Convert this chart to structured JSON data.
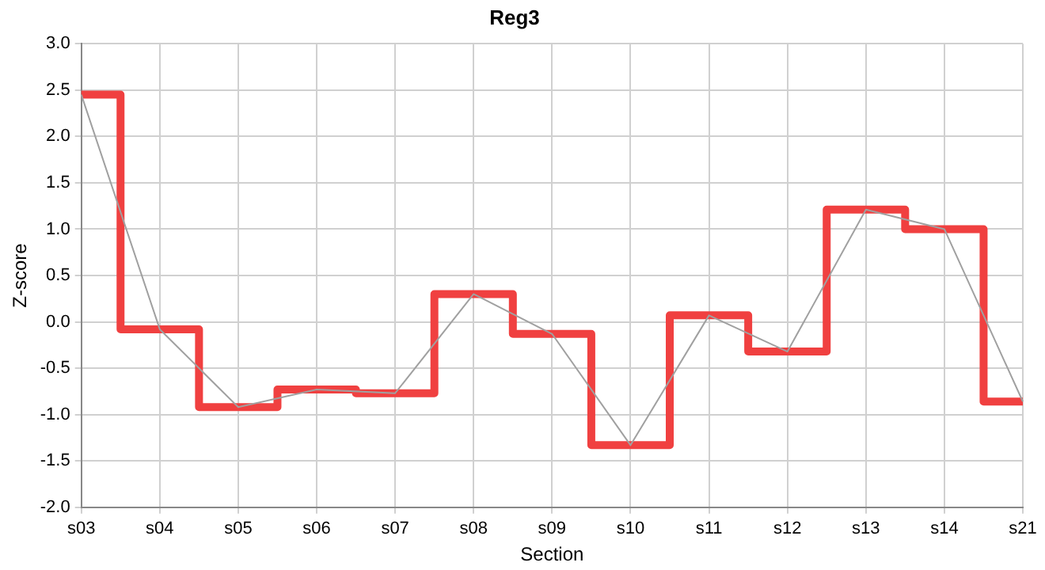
{
  "chart_data": {
    "type": "line",
    "title": "Reg3",
    "xlabel": "Section",
    "ylabel": "Z-score",
    "categories": [
      "s03",
      "s04",
      "s05",
      "s06",
      "s07",
      "s08",
      "s09",
      "s10",
      "s11",
      "s12",
      "s13",
      "s14",
      "s21"
    ],
    "series": [
      {
        "type": "line",
        "color": "#a0a0a0",
        "values": [
          2.45,
          -0.08,
          -0.92,
          -0.73,
          -0.77,
          0.3,
          -0.13,
          -1.33,
          0.07,
          -0.32,
          1.21,
          1.0,
          -0.86
        ]
      },
      {
        "type": "step",
        "color": "#f04040",
        "values": [
          2.45,
          -0.08,
          -0.92,
          -0.73,
          -0.77,
          0.3,
          -0.13,
          -1.33,
          0.07,
          -0.32,
          1.21,
          1.0,
          -0.86
        ]
      }
    ],
    "ylim": [
      -2,
      3
    ],
    "yticks": [
      {
        "value": -2,
        "label": "-2.0"
      },
      {
        "value": -1.5,
        "label": "-1.5"
      },
      {
        "value": -1,
        "label": "-1.0"
      },
      {
        "value": -0.5,
        "label": "-0.5"
      },
      {
        "value": 0,
        "label": "0.0"
      },
      {
        "value": 0.5,
        "label": "0.5"
      },
      {
        "value": 1,
        "label": "1.0"
      },
      {
        "value": 1.5,
        "label": "1.5"
      },
      {
        "value": 2,
        "label": "2.0"
      },
      {
        "value": 2.5,
        "label": "2.5"
      },
      {
        "value": 3,
        "label": "3.0"
      }
    ],
    "grid": true,
    "legend": false,
    "marker": "none"
  }
}
